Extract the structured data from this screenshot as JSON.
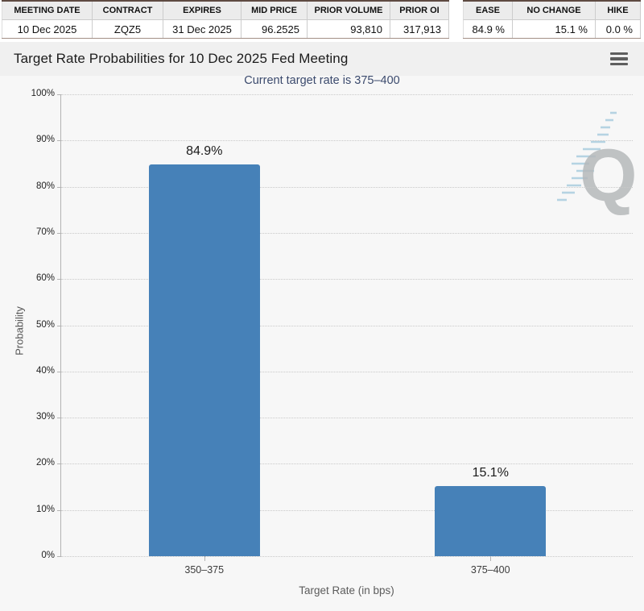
{
  "contract_table": {
    "headers": [
      "MEETING DATE",
      "CONTRACT",
      "EXPIRES",
      "MID PRICE",
      "PRIOR VOLUME",
      "PRIOR OI"
    ],
    "values": [
      "10 Dec 2025",
      "ZQZ5",
      "31 Dec 2025",
      "96.2525",
      "93,810",
      "317,913"
    ]
  },
  "probability_table": {
    "headers": [
      "EASE",
      "NO CHANGE",
      "HIKE"
    ],
    "values": [
      "84.9 %",
      "15.1 %",
      "0.0 %"
    ]
  },
  "header": {
    "title": "Target Rate Probabilities for 10 Dec 2025 Fed Meeting",
    "menu_icon": "hamburger-icon"
  },
  "watermark": {
    "letter": "Q",
    "accent_color": "#9fc8dc",
    "letter_color": "#b6b9bb"
  },
  "chart_data": {
    "type": "bar",
    "title": "Target Rate Probabilities for 10 Dec 2025 Fed Meeting",
    "subtitle": "Current target rate is 375–400",
    "categories": [
      "350–375",
      "375–400"
    ],
    "values": [
      84.9,
      15.1
    ],
    "bar_labels": [
      "84.9%",
      "15.1%"
    ],
    "xlabel": "Target Rate (in bps)",
    "ylabel": "Probability",
    "ylim": [
      0,
      100
    ],
    "ytick_step": 10,
    "ytick_labels": [
      "0%",
      "10%",
      "20%",
      "30%",
      "40%",
      "50%",
      "60%",
      "70%",
      "80%",
      "90%",
      "100%"
    ],
    "grid": "dotted-horizontal",
    "legend": "none",
    "bar_color": "#4681b8"
  }
}
